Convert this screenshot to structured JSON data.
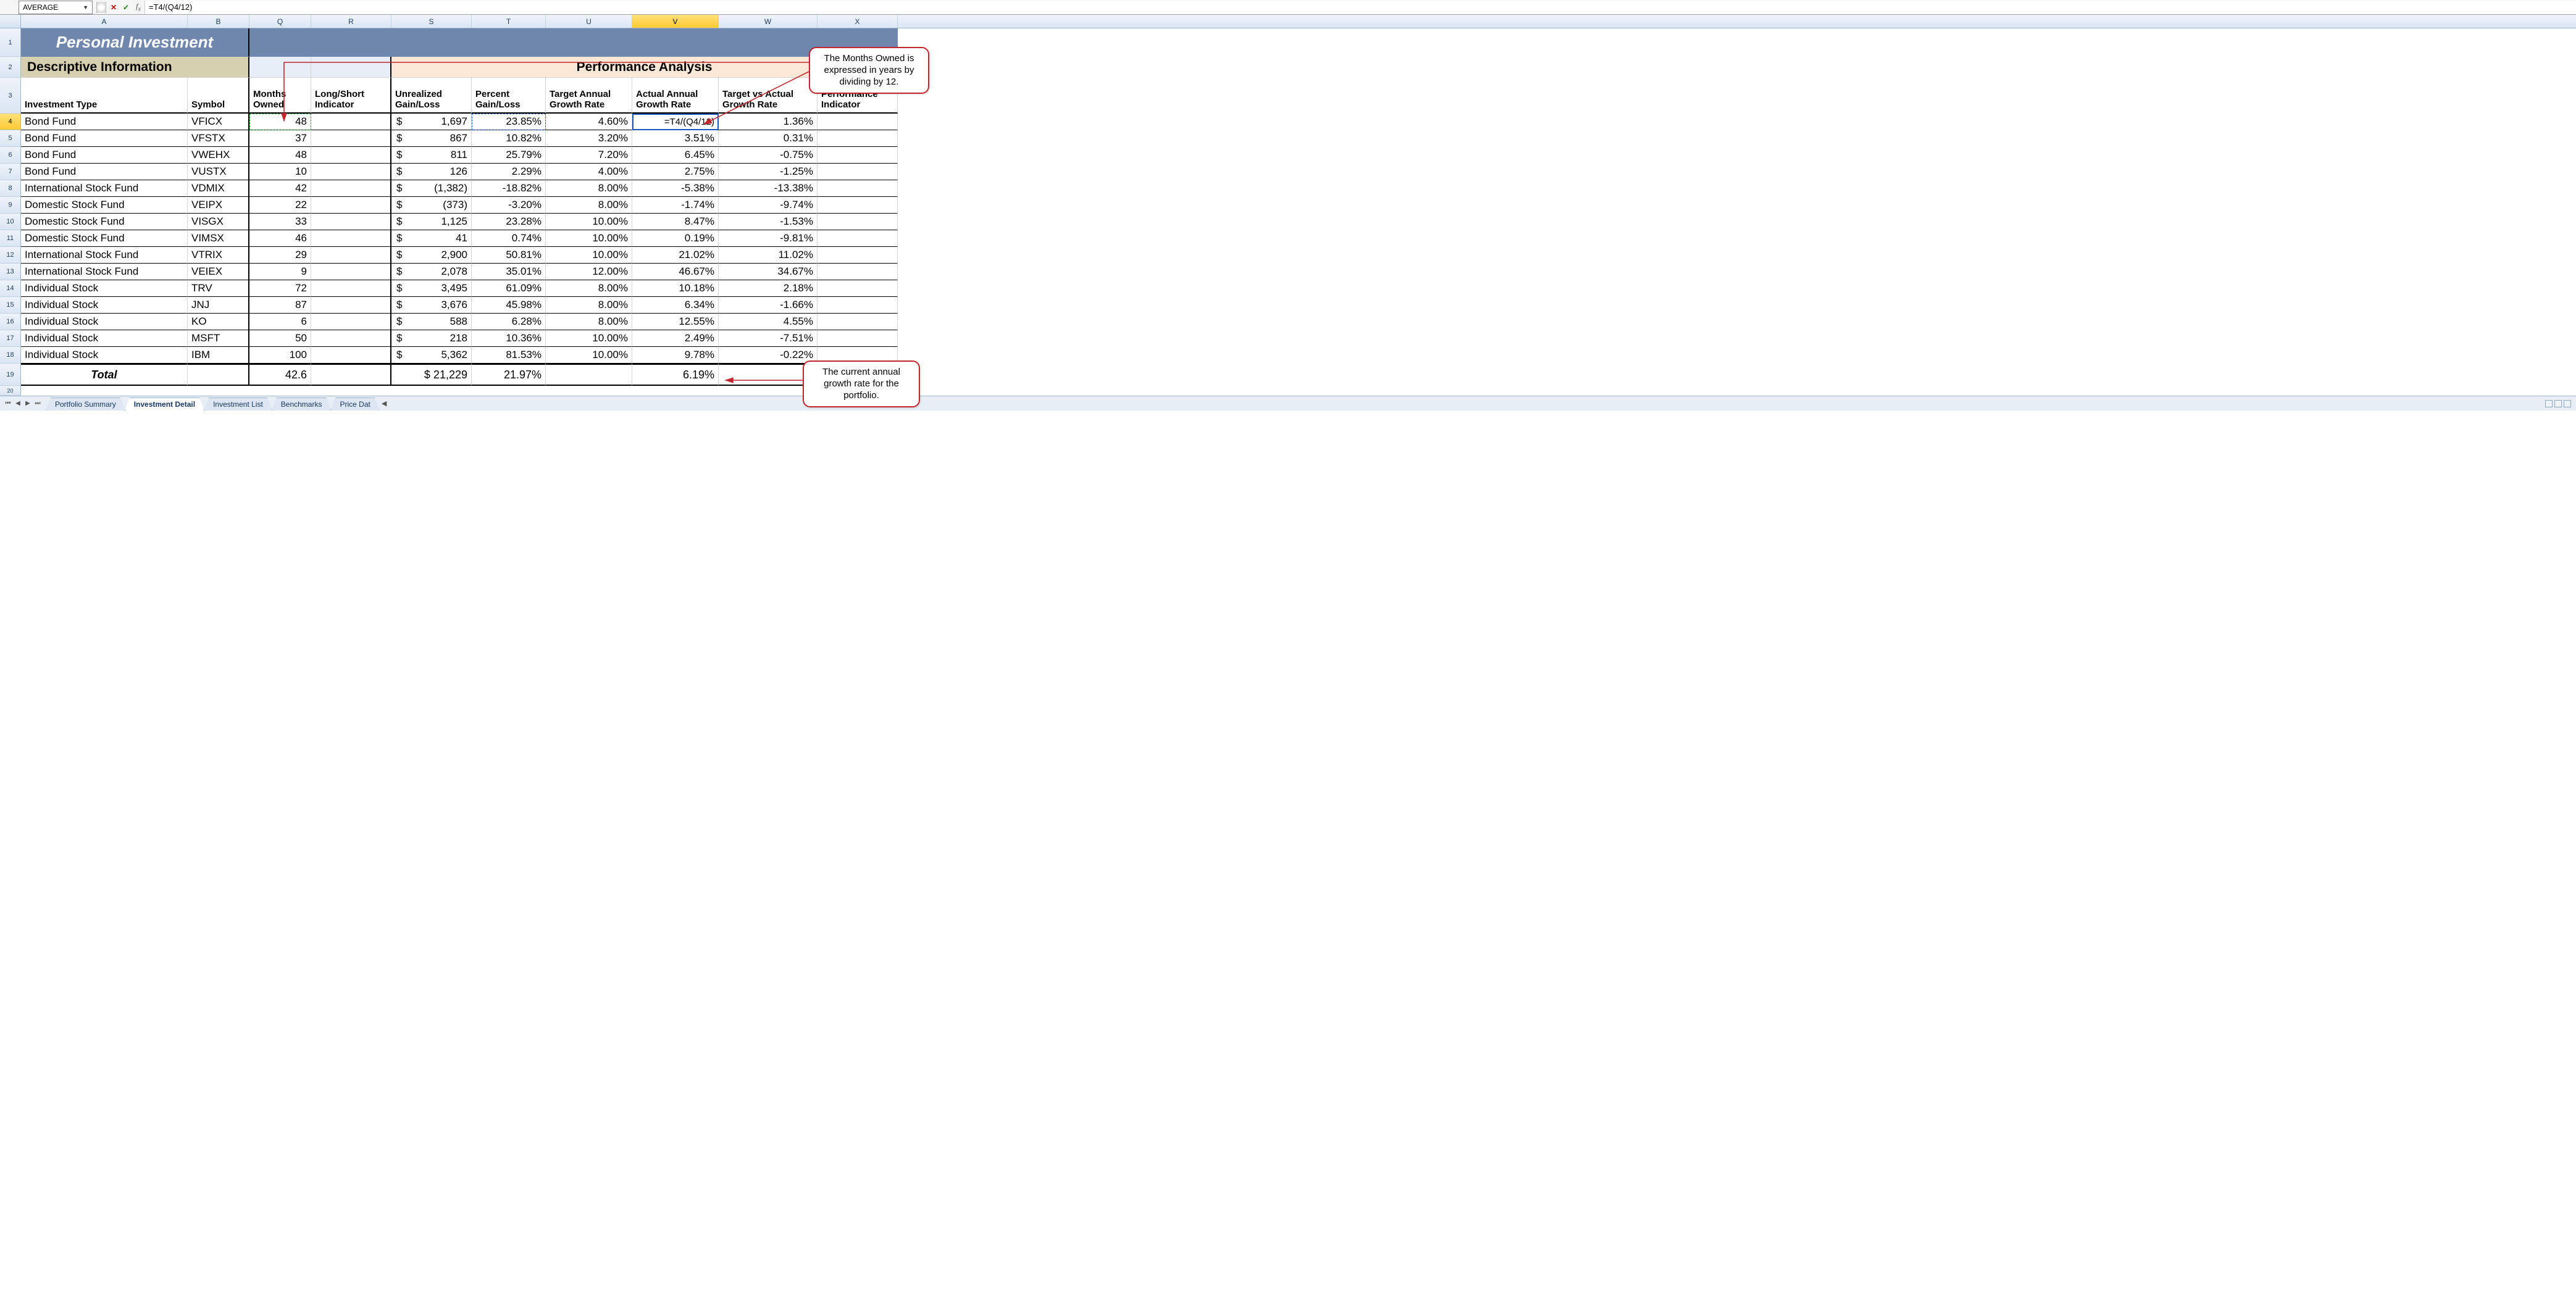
{
  "formula_bar": {
    "name_box": "AVERAGE",
    "formula": "=T4/(Q4/12)"
  },
  "columns": {
    "a": "A",
    "b": "B",
    "q": "Q",
    "r": "R",
    "s": "S",
    "t": "T",
    "u": "U",
    "v": "V",
    "w": "W",
    "x": "X"
  },
  "row_nums": [
    "1",
    "2",
    "3",
    "4",
    "5",
    "6",
    "7",
    "8",
    "9",
    "10",
    "11",
    "12",
    "13",
    "14",
    "15",
    "16",
    "17",
    "18",
    "19",
    "20"
  ],
  "banner": "Personal Investment",
  "section_left": "Descriptive Information",
  "section_right": "Performance Analysis",
  "headers": {
    "a": "Investment Type",
    "b": "Symbol",
    "q": "Months Owned",
    "r": "Long/Short Indicator",
    "s": "Unrealized Gain/Loss",
    "t": "Percent Gain/Loss",
    "u": "Target Annual Growth Rate",
    "v": "Actual Annual Growth Rate",
    "w": "Target vs Actual Growth Rate",
    "x": "Performance Indicator"
  },
  "rows": [
    {
      "type": "Bond Fund",
      "sym": "VFICX",
      "months": "48",
      "gl": "1,697",
      "pct": "23.85%",
      "tgt": "4.60%",
      "act": "=T4/(Q4/12)",
      "tva": "1.36%"
    },
    {
      "type": "Bond Fund",
      "sym": "VFSTX",
      "months": "37",
      "gl": "867",
      "pct": "10.82%",
      "tgt": "3.20%",
      "act": "3.51%",
      "tva": "0.31%"
    },
    {
      "type": "Bond Fund",
      "sym": "VWEHX",
      "months": "48",
      "gl": "811",
      "pct": "25.79%",
      "tgt": "7.20%",
      "act": "6.45%",
      "tva": "-0.75%"
    },
    {
      "type": "Bond Fund",
      "sym": "VUSTX",
      "months": "10",
      "gl": "126",
      "pct": "2.29%",
      "tgt": "4.00%",
      "act": "2.75%",
      "tva": "-1.25%"
    },
    {
      "type": "International Stock Fund",
      "sym": "VDMIX",
      "months": "42",
      "gl": "(1,382)",
      "neg": true,
      "pct": "-18.82%",
      "tgt": "8.00%",
      "act": "-5.38%",
      "tva": "-13.38%"
    },
    {
      "type": "Domestic Stock Fund",
      "sym": "VEIPX",
      "months": "22",
      "gl": "(373)",
      "neg": true,
      "pct": "-3.20%",
      "tgt": "8.00%",
      "act": "-1.74%",
      "tva": "-9.74%"
    },
    {
      "type": "Domestic Stock Fund",
      "sym": "VISGX",
      "months": "33",
      "gl": "1,125",
      "pct": "23.28%",
      "tgt": "10.00%",
      "act": "8.47%",
      "tva": "-1.53%"
    },
    {
      "type": "Domestic Stock Fund",
      "sym": "VIMSX",
      "months": "46",
      "gl": "41",
      "pct": "0.74%",
      "tgt": "10.00%",
      "act": "0.19%",
      "tva": "-9.81%"
    },
    {
      "type": "International Stock Fund",
      "sym": "VTRIX",
      "months": "29",
      "gl": "2,900",
      "pct": "50.81%",
      "tgt": "10.00%",
      "act": "21.02%",
      "tva": "11.02%"
    },
    {
      "type": "International Stock Fund",
      "sym": "VEIEX",
      "months": "9",
      "gl": "2,078",
      "pct": "35.01%",
      "tgt": "12.00%",
      "act": "46.67%",
      "tva": "34.67%"
    },
    {
      "type": "Individual Stock",
      "sym": "TRV",
      "months": "72",
      "gl": "3,495",
      "pct": "61.09%",
      "tgt": "8.00%",
      "act": "10.18%",
      "tva": "2.18%"
    },
    {
      "type": "Individual Stock",
      "sym": "JNJ",
      "months": "87",
      "gl": "3,676",
      "pct": "45.98%",
      "tgt": "8.00%",
      "act": "6.34%",
      "tva": "-1.66%"
    },
    {
      "type": "Individual Stock",
      "sym": "KO",
      "months": "6",
      "gl": "588",
      "pct": "6.28%",
      "tgt": "8.00%",
      "act": "12.55%",
      "tva": "4.55%"
    },
    {
      "type": "Individual Stock",
      "sym": "MSFT",
      "months": "50",
      "gl": "218",
      "pct": "10.36%",
      "tgt": "10.00%",
      "act": "2.49%",
      "tva": "-7.51%"
    },
    {
      "type": "Individual Stock",
      "sym": "IBM",
      "months": "100",
      "gl": "5,362",
      "pct": "81.53%",
      "tgt": "10.00%",
      "act": "9.78%",
      "tva": "-0.22%"
    }
  ],
  "total": {
    "label": "Total",
    "months": "42.6",
    "gl": "$ 21,229",
    "pct": "21.97%",
    "act": "6.19%"
  },
  "callouts": {
    "top": "The Months Owned is expressed in years by dividing by 12.",
    "bottom": "The current annual growth rate for the portfolio."
  },
  "tabs": {
    "items": [
      "Portfolio Summary",
      "Investment Detail",
      "Investment List",
      "Benchmarks",
      "Price Dat"
    ],
    "active_index": 1
  },
  "colors": {
    "banner_bg": "#6f86ad",
    "desc_bg": "#d6d0b0",
    "qr_bg": "#e8eef8",
    "perf_bg": "#fbe8d6",
    "callout_border": "#c1272d",
    "col_header_sel": "#ffc933"
  }
}
